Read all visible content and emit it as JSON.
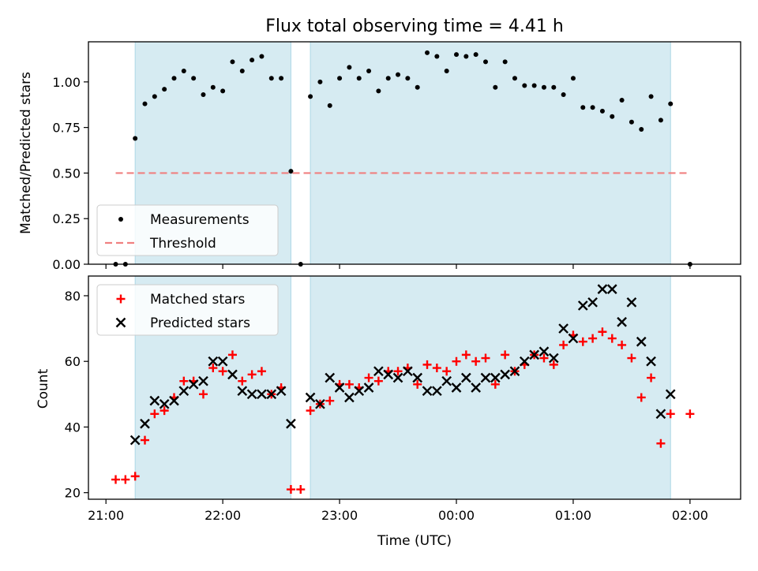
{
  "chart_data": [
    {
      "type": "scatter",
      "title": "Flux total observing time = 4.41 h",
      "ylabel": "Matched/Predicted stars",
      "xlabel": "",
      "ylim": [
        0,
        1.22
      ],
      "yticks": [
        "0.00",
        "0.25",
        "0.50",
        "0.75",
        "1.00"
      ],
      "xticks": [
        "21:00",
        "22:00",
        "23:00",
        "00:00",
        "01:00",
        "02:00"
      ],
      "grid": false,
      "legend_position": "lower-left",
      "threshold": 0.5,
      "observing_windows": [
        [
          "21:15",
          "22:35"
        ],
        [
          "22:45",
          "01:50"
        ]
      ],
      "series": [
        {
          "name": "Measurements",
          "color": "#000000",
          "marker": "dot",
          "x": [
            "21:05",
            "21:10",
            "21:15",
            "21:20",
            "21:25",
            "21:30",
            "21:35",
            "21:40",
            "21:45",
            "21:50",
            "21:55",
            "22:00",
            "22:05",
            "22:10",
            "22:15",
            "22:20",
            "22:25",
            "22:30",
            "22:35",
            "22:40",
            "22:45",
            "22:50",
            "22:55",
            "23:00",
            "23:05",
            "23:10",
            "23:15",
            "23:20",
            "23:25",
            "23:30",
            "23:35",
            "23:40",
            "23:45",
            "23:50",
            "23:55",
            "00:00",
            "00:05",
            "00:10",
            "00:15",
            "00:20",
            "00:25",
            "00:30",
            "00:35",
            "00:40",
            "00:45",
            "00:50",
            "00:55",
            "01:00",
            "01:05",
            "01:10",
            "01:15",
            "01:20",
            "01:25",
            "01:30",
            "01:35",
            "01:40",
            "01:45",
            "01:50",
            "02:00"
          ],
          "y": [
            0.0,
            0.0,
            0.69,
            0.88,
            0.92,
            0.96,
            1.02,
            1.06,
            1.02,
            0.93,
            0.97,
            0.95,
            1.11,
            1.06,
            1.12,
            1.14,
            1.02,
            1.02,
            0.51,
            0.0,
            0.92,
            1.0,
            0.87,
            1.02,
            1.08,
            1.02,
            1.06,
            0.95,
            1.02,
            1.04,
            1.02,
            0.97,
            1.16,
            1.14,
            1.06,
            1.15,
            1.14,
            1.15,
            1.11,
            0.97,
            1.11,
            1.02,
            0.98,
            0.98,
            0.97,
            0.97,
            0.93,
            1.02,
            0.86,
            0.86,
            0.84,
            0.81,
            0.9,
            0.78,
            0.74,
            0.92,
            0.79,
            0.88,
            0.0
          ]
        },
        {
          "name": "Threshold",
          "color": "#f08080",
          "style": "dashed",
          "x": [
            "21:05",
            "02:00"
          ],
          "y": [
            0.5,
            0.5
          ]
        }
      ]
    },
    {
      "type": "scatter",
      "title": "",
      "ylabel": "Count",
      "xlabel": "Time (UTC)",
      "ylim": [
        18,
        86
      ],
      "yticks": [
        "20",
        "40",
        "60",
        "80"
      ],
      "xticks": [
        "21:00",
        "22:00",
        "23:00",
        "00:00",
        "01:00",
        "02:00"
      ],
      "grid": false,
      "legend_position": "upper-left",
      "observing_windows": [
        [
          "21:15",
          "22:35"
        ],
        [
          "22:45",
          "01:50"
        ]
      ],
      "series": [
        {
          "name": "Matched stars",
          "color": "#ff0000",
          "marker": "plus",
          "x": [
            "21:05",
            "21:10",
            "21:15",
            "21:20",
            "21:25",
            "21:30",
            "21:35",
            "21:40",
            "21:45",
            "21:50",
            "21:55",
            "22:00",
            "22:05",
            "22:10",
            "22:15",
            "22:20",
            "22:25",
            "22:30",
            "22:35",
            "22:40",
            "22:45",
            "22:50",
            "22:55",
            "23:00",
            "23:05",
            "23:10",
            "23:15",
            "23:20",
            "23:25",
            "23:30",
            "23:35",
            "23:40",
            "23:45",
            "23:50",
            "23:55",
            "00:00",
            "00:05",
            "00:10",
            "00:15",
            "00:20",
            "00:25",
            "00:30",
            "00:35",
            "00:40",
            "00:45",
            "00:50",
            "00:55",
            "01:00",
            "01:05",
            "01:10",
            "01:15",
            "01:20",
            "01:25",
            "01:30",
            "01:35",
            "01:40",
            "01:45",
            "01:50",
            "02:00"
          ],
          "y": [
            24,
            24,
            25,
            36,
            44,
            45,
            49,
            54,
            54,
            50,
            58,
            57,
            62,
            54,
            56,
            57,
            50,
            52,
            21,
            21,
            45,
            47,
            48,
            53,
            53,
            52,
            55,
            54,
            57,
            57,
            58,
            53,
            59,
            58,
            57,
            60,
            62,
            60,
            61,
            53,
            62,
            57,
            59,
            62,
            61,
            59,
            65,
            68,
            66,
            67,
            69,
            67,
            65,
            61,
            49,
            55,
            35,
            44,
            44
          ]
        },
        {
          "name": "Predicted stars",
          "color": "#000000",
          "marker": "x",
          "x": [
            "21:15",
            "21:20",
            "21:25",
            "21:30",
            "21:35",
            "21:40",
            "21:45",
            "21:50",
            "21:55",
            "22:00",
            "22:05",
            "22:10",
            "22:15",
            "22:20",
            "22:25",
            "22:30",
            "22:35",
            "22:45",
            "22:50",
            "22:55",
            "23:00",
            "23:05",
            "23:10",
            "23:15",
            "23:20",
            "23:25",
            "23:30",
            "23:35",
            "23:40",
            "23:45",
            "23:50",
            "23:55",
            "00:00",
            "00:05",
            "00:10",
            "00:15",
            "00:20",
            "00:25",
            "00:30",
            "00:35",
            "00:40",
            "00:45",
            "00:50",
            "00:55",
            "01:00",
            "01:05",
            "01:10",
            "01:15",
            "01:20",
            "01:25",
            "01:30",
            "01:35",
            "01:40",
            "01:45",
            "01:50"
          ],
          "y": [
            36,
            41,
            48,
            47,
            48,
            51,
            53,
            54,
            60,
            60,
            56,
            51,
            50,
            50,
            50,
            51,
            41,
            49,
            47,
            55,
            52,
            49,
            51,
            52,
            57,
            56,
            55,
            57,
            55,
            51,
            51,
            54,
            52,
            55,
            52,
            55,
            55,
            56,
            57,
            60,
            62,
            63,
            61,
            70,
            67,
            77,
            78,
            82,
            82,
            72,
            78,
            66,
            60,
            44,
            50
          ]
        }
      ]
    }
  ]
}
